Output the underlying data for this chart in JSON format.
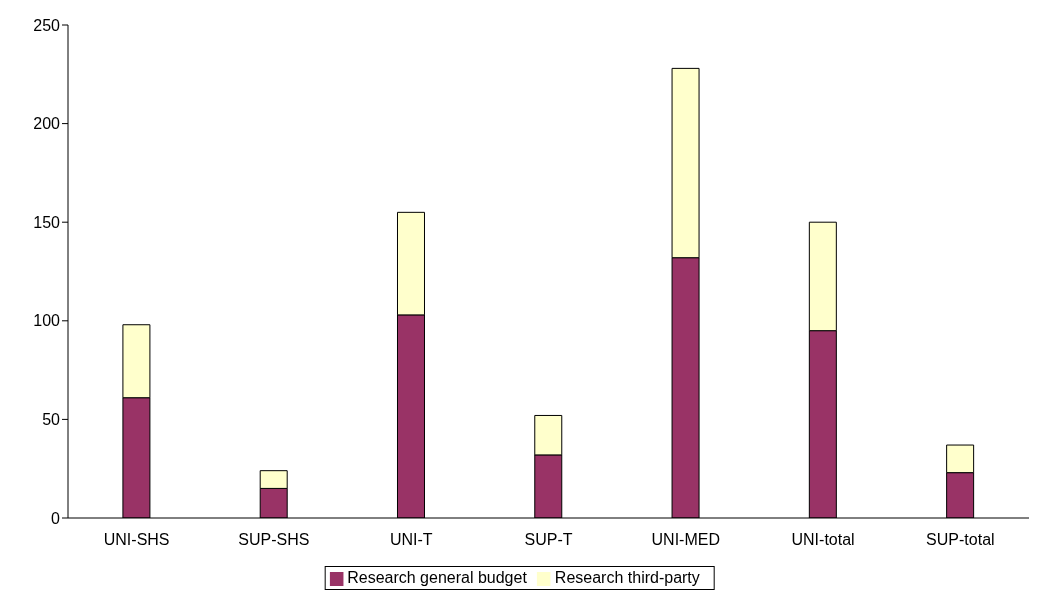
{
  "chart_data": {
    "type": "bar",
    "stacked": true,
    "categories": [
      "UNI-SHS",
      "SUP-SHS",
      "UNI-T",
      "SUP-T",
      "UNI-MED",
      "UNI-total",
      "SUP-total"
    ],
    "series": [
      {
        "name": "Research general budget",
        "color": "#993366",
        "values": [
          61,
          15,
          103,
          32,
          132,
          95,
          23
        ]
      },
      {
        "name": "Research third-party",
        "color": "#ffffcc",
        "values": [
          37,
          9,
          52,
          20,
          96,
          55,
          14
        ]
      }
    ],
    "ylim": [
      0,
      250
    ],
    "yticks": [
      0,
      50,
      100,
      150,
      200,
      250
    ],
    "grid": false,
    "legend": "bottom"
  }
}
